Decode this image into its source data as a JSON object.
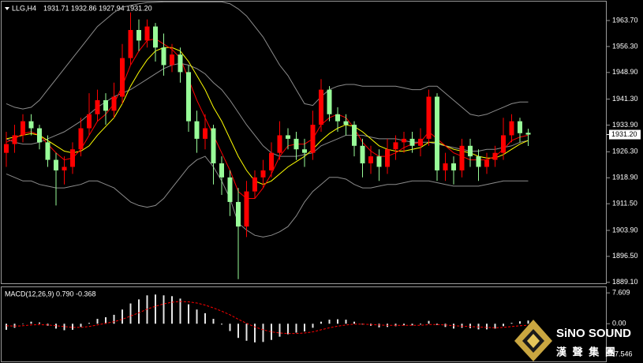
{
  "chart_data": [
    {
      "type": "candlestick",
      "title": "LLG,H4",
      "subtitle": "1931.71 1932.86 1927.94 1931.20",
      "open": [
        1926,
        1928.5,
        1931,
        1935,
        1933,
        1929,
        1924,
        1921,
        1922,
        1927,
        1933,
        1937,
        1941,
        1938,
        1942,
        1953,
        1961,
        1958,
        1962,
        1956,
        1951,
        1954,
        1949,
        1935,
        1930,
        1933,
        1923,
        1919,
        1912,
        1905,
        1915,
        1919,
        1921,
        1926,
        1931,
        1930,
        1927,
        1926,
        1934,
        1944,
        1937,
        1935,
        1934,
        1928,
        1923,
        1925,
        1922,
        1927,
        1929,
        1930,
        1928,
        1930,
        1942,
        1921,
        1923,
        1921,
        1928,
        1925,
        1922,
        1924,
        1926,
        1931,
        1935,
        1931.71
      ],
      "high": [
        1932,
        1934,
        1937,
        1937,
        1934,
        1931,
        1926,
        1925,
        1929,
        1936,
        1943,
        1944,
        1943,
        1946,
        1957,
        1966,
        1964,
        1964,
        1963,
        1960,
        1957,
        1956,
        1951,
        1938,
        1937,
        1934,
        1925,
        1921,
        1916,
        1918,
        1921,
        1924,
        1929,
        1935,
        1933,
        1932,
        1930,
        1938,
        1947,
        1945,
        1939,
        1937,
        1935,
        1930,
        1928,
        1927,
        1930,
        1931,
        1932,
        1932,
        1933,
        1944,
        1943,
        1926,
        1925,
        1930,
        1930,
        1927,
        1926,
        1928,
        1936,
        1937,
        1936,
        1932.86
      ],
      "low": [
        1922,
        1926,
        1929,
        1931,
        1927,
        1922,
        1911,
        1917,
        1920,
        1925,
        1931,
        1935,
        1934,
        1936,
        1940,
        1951,
        1955,
        1956,
        1952,
        1948,
        1949,
        1946,
        1932,
        1926,
        1927,
        1917,
        1914,
        1908,
        1890,
        1902,
        1913,
        1916,
        1919,
        1924,
        1927,
        1924,
        1922,
        1924,
        1932,
        1935,
        1932,
        1931,
        1925,
        1919,
        1920,
        1918,
        1920,
        1924,
        1926,
        1926,
        1925,
        1928,
        1918,
        1918,
        1917,
        1919,
        1922,
        1918,
        1920,
        1922,
        1924,
        1929,
        1929,
        1927.94
      ],
      "close": [
        1928.5,
        1931,
        1935,
        1933,
        1929,
        1924,
        1921,
        1922,
        1927,
        1933,
        1937,
        1941,
        1938,
        1942,
        1953,
        1961,
        1958,
        1962,
        1956,
        1951,
        1954,
        1949,
        1935,
        1930,
        1933,
        1923,
        1919,
        1912,
        1905,
        1915,
        1919,
        1921,
        1926,
        1931,
        1930,
        1927,
        1926,
        1934,
        1944,
        1937,
        1935,
        1934,
        1928,
        1923,
        1925,
        1922,
        1927,
        1929,
        1930,
        1928,
        1930,
        1942,
        1921,
        1923,
        1921,
        1928,
        1925,
        1922,
        1924,
        1926,
        1931,
        1935,
        1931.6,
        1931.2
      ],
      "up_color": "#ff0000",
      "down_color": "#98fb98",
      "series": [
        {
          "color": "#8c8c8c",
          "values": [
            1940,
            1939,
            1938.5,
            1939,
            1941,
            1944,
            1947,
            1950,
            1953,
            1956,
            1959,
            1962,
            1964,
            1966,
            1967.5,
            1968,
            1968.5,
            1968.8,
            1968.9,
            1969,
            1969,
            1969,
            1969,
            1969,
            1969,
            1969,
            1969,
            1968.5,
            1967,
            1965,
            1962,
            1959,
            1955,
            1951,
            1948,
            1944,
            1940,
            1939.5,
            1942,
            1944,
            1945,
            1945.5,
            1945.5,
            1945,
            1945,
            1945,
            1945,
            1945,
            1944.5,
            1944,
            1944,
            1945,
            1945,
            1943,
            1941,
            1939,
            1937,
            1936.5,
            1937,
            1938,
            1939,
            1940,
            1940.5,
            1940.5
          ]
        },
        {
          "color": "#8c8c8c",
          "values": [
            1930,
            1929,
            1928.5,
            1928.5,
            1929,
            1930,
            1931,
            1932,
            1933.5,
            1935,
            1937,
            1939,
            1940.5,
            1942,
            1943,
            1944,
            1945.5,
            1947,
            1948.5,
            1950,
            1951,
            1951.5,
            1951,
            1950,
            1948.5,
            1946,
            1944,
            1941,
            1937.5,
            1934,
            1931,
            1928,
            1926,
            1925,
            1925,
            1925,
            1925.5,
            1926,
            1928,
            1929,
            1930,
            1931,
            1931,
            1931,
            1930.5,
            1930,
            1930,
            1930,
            1929.5,
            1929,
            1929,
            1929,
            1928.5,
            1928,
            1927.5,
            1927,
            1926.5,
            1926.5,
            1927,
            1927,
            1927.5,
            1928,
            1929,
            1929.5
          ]
        },
        {
          "color": "#8c8c8c",
          "values": [
            1920,
            1919,
            1918,
            1918,
            1917,
            1916.5,
            1916,
            1916,
            1916.5,
            1917,
            1918,
            1918,
            1917,
            1916,
            1914,
            1912,
            1911,
            1910.5,
            1911,
            1913,
            1916,
            1919,
            1922,
            1924,
            1925,
            1922,
            1918,
            1913,
            1906,
            1904,
            1902.5,
            1902,
            1902.5,
            1903.5,
            1905,
            1908,
            1912,
            1915,
            1917,
            1919,
            1919,
            1918.5,
            1917,
            1916,
            1916,
            1916.5,
            1917,
            1917,
            1917.5,
            1918,
            1918,
            1918,
            1917.5,
            1917,
            1916.5,
            1916.5,
            1916.5,
            1916.5,
            1917,
            1917.5,
            1918,
            1918,
            1918,
            1918
          ]
        },
        {
          "color": "#ffff00",
          "values": [
            1930,
            1930.5,
            1931,
            1931.5,
            1931,
            1929.5,
            1928,
            1926.5,
            1926,
            1926.5,
            1928,
            1931,
            1933.5,
            1936,
            1940,
            1945,
            1949,
            1952.5,
            1955,
            1956,
            1956,
            1955,
            1952,
            1948,
            1944,
            1939,
            1935,
            1930,
            1925,
            1921,
            1918,
            1917,
            1918,
            1920,
            1922,
            1923.5,
            1925,
            1927,
            1929.5,
            1931.5,
            1933,
            1934,
            1933.5,
            1932,
            1930,
            1928,
            1927,
            1926.5,
            1926.5,
            1927,
            1927.5,
            1929,
            1929,
            1928,
            1927,
            1926.5,
            1926,
            1925,
            1924.5,
            1924.5,
            1925.5,
            1927,
            1928.5,
            1929.5
          ]
        },
        {
          "color": "#ff0000",
          "values": [
            1929,
            1930,
            1931.5,
            1932,
            1931,
            1928.5,
            1926,
            1924,
            1924.5,
            1927,
            1931,
            1935,
            1937,
            1940,
            1945,
            1951,
            1955,
            1958,
            1958.5,
            1957,
            1955.5,
            1953,
            1947,
            1941,
            1936,
            1931,
            1926,
            1921,
            1915,
            1913,
            1913,
            1916,
            1920,
            1925,
            1928,
            1928.5,
            1928.5,
            1930,
            1934,
            1936,
            1937,
            1936,
            1933,
            1929,
            1926.5,
            1925,
            1925,
            1926,
            1927.5,
            1928.5,
            1929,
            1932,
            1930,
            1928,
            1926,
            1925,
            1924,
            1924,
            1924,
            1925,
            1927,
            1929.5,
            1930.5,
            1931
          ]
        }
      ],
      "ylim": [
        1888.6,
        1969.1
      ],
      "yticks": [
        {
          "value": 1963.7,
          "label": "1963.70"
        },
        {
          "value": 1956.3,
          "label": "1956.30"
        },
        {
          "value": 1948.9,
          "label": "1948.90"
        },
        {
          "value": 1941.3,
          "label": "1941.30"
        },
        {
          "value": 1933.9,
          "label": "1933.90"
        },
        {
          "value": 1926.3,
          "label": "1926.30"
        },
        {
          "value": 1918.9,
          "label": "1918.90"
        },
        {
          "value": 1911.5,
          "label": "1911.50"
        },
        {
          "value": 1903.9,
          "label": "1903.90"
        },
        {
          "value": 1896.5,
          "label": "1896.50"
        },
        {
          "value": 1889.1,
          "label": "1889.10"
        }
      ],
      "last_price": {
        "value": 1931.2,
        "label": "1931.20"
      }
    },
    {
      "type": "macd",
      "title": "MACD(12,26,9) 0.790 -0.368",
      "color": "#e6e6e6",
      "signal_color": "#ff0000",
      "values": [
        -1.5,
        -1,
        0,
        0.5,
        0.3,
        -0.5,
        -1.2,
        -1.6,
        -1.5,
        -0.8,
        0.2,
        1.2,
        1.6,
        2.2,
        3.5,
        5,
        6,
        7,
        7.2,
        7,
        6.8,
        6.2,
        4.8,
        3.5,
        2.6,
        1.2,
        -0.2,
        -1.8,
        -3.5,
        -4.2,
        -4.6,
        -4.5,
        -4,
        -3.2,
        -2.6,
        -2.2,
        -1.9,
        -1,
        0.5,
        1,
        1.1,
        1,
        0.5,
        -0.2,
        -0.5,
        -0.9,
        -0.8,
        -0.6,
        -0.4,
        -0.4,
        -0.2,
        0.7,
        -0.3,
        -0.8,
        -1.2,
        -1,
        -1.1,
        -1.4,
        -1.4,
        -1.2,
        -0.6,
        0.2,
        0.6,
        0.79
      ],
      "signal": [
        -0.5,
        -0.6,
        -0.5,
        -0.3,
        -0.2,
        -0.3,
        -0.5,
        -0.7,
        -0.9,
        -0.9,
        -0.7,
        -0.3,
        0.1,
        0.5,
        1.1,
        1.9,
        2.7,
        3.6,
        4.3,
        4.9,
        5.3,
        5.5,
        5.4,
        5.1,
        4.6,
        3.9,
        3.1,
        2.2,
        1.1,
        0.1,
        -0.8,
        -1.5,
        -2,
        -2.3,
        -2.4,
        -2.4,
        -2.3,
        -2,
        -1.5,
        -1,
        -0.6,
        -0.3,
        -0.1,
        -0.1,
        -0.2,
        -0.3,
        -0.4,
        -0.4,
        -0.4,
        -0.4,
        -0.4,
        -0.2,
        -0.2,
        -0.3,
        -0.5,
        -0.6,
        -0.7,
        -0.8,
        -0.9,
        -1,
        -0.9,
        -0.7,
        -0.5,
        -0.368
      ],
      "ylim": [
        -9.3,
        9.0
      ],
      "yticks": [
        7.609,
        {
          "value": 0,
          "label": "0.00"
        },
        -7.546
      ]
    }
  ],
  "logo": {
    "name": "SiNO SOUND",
    "subtitle": "漢 聲 集 團"
  }
}
